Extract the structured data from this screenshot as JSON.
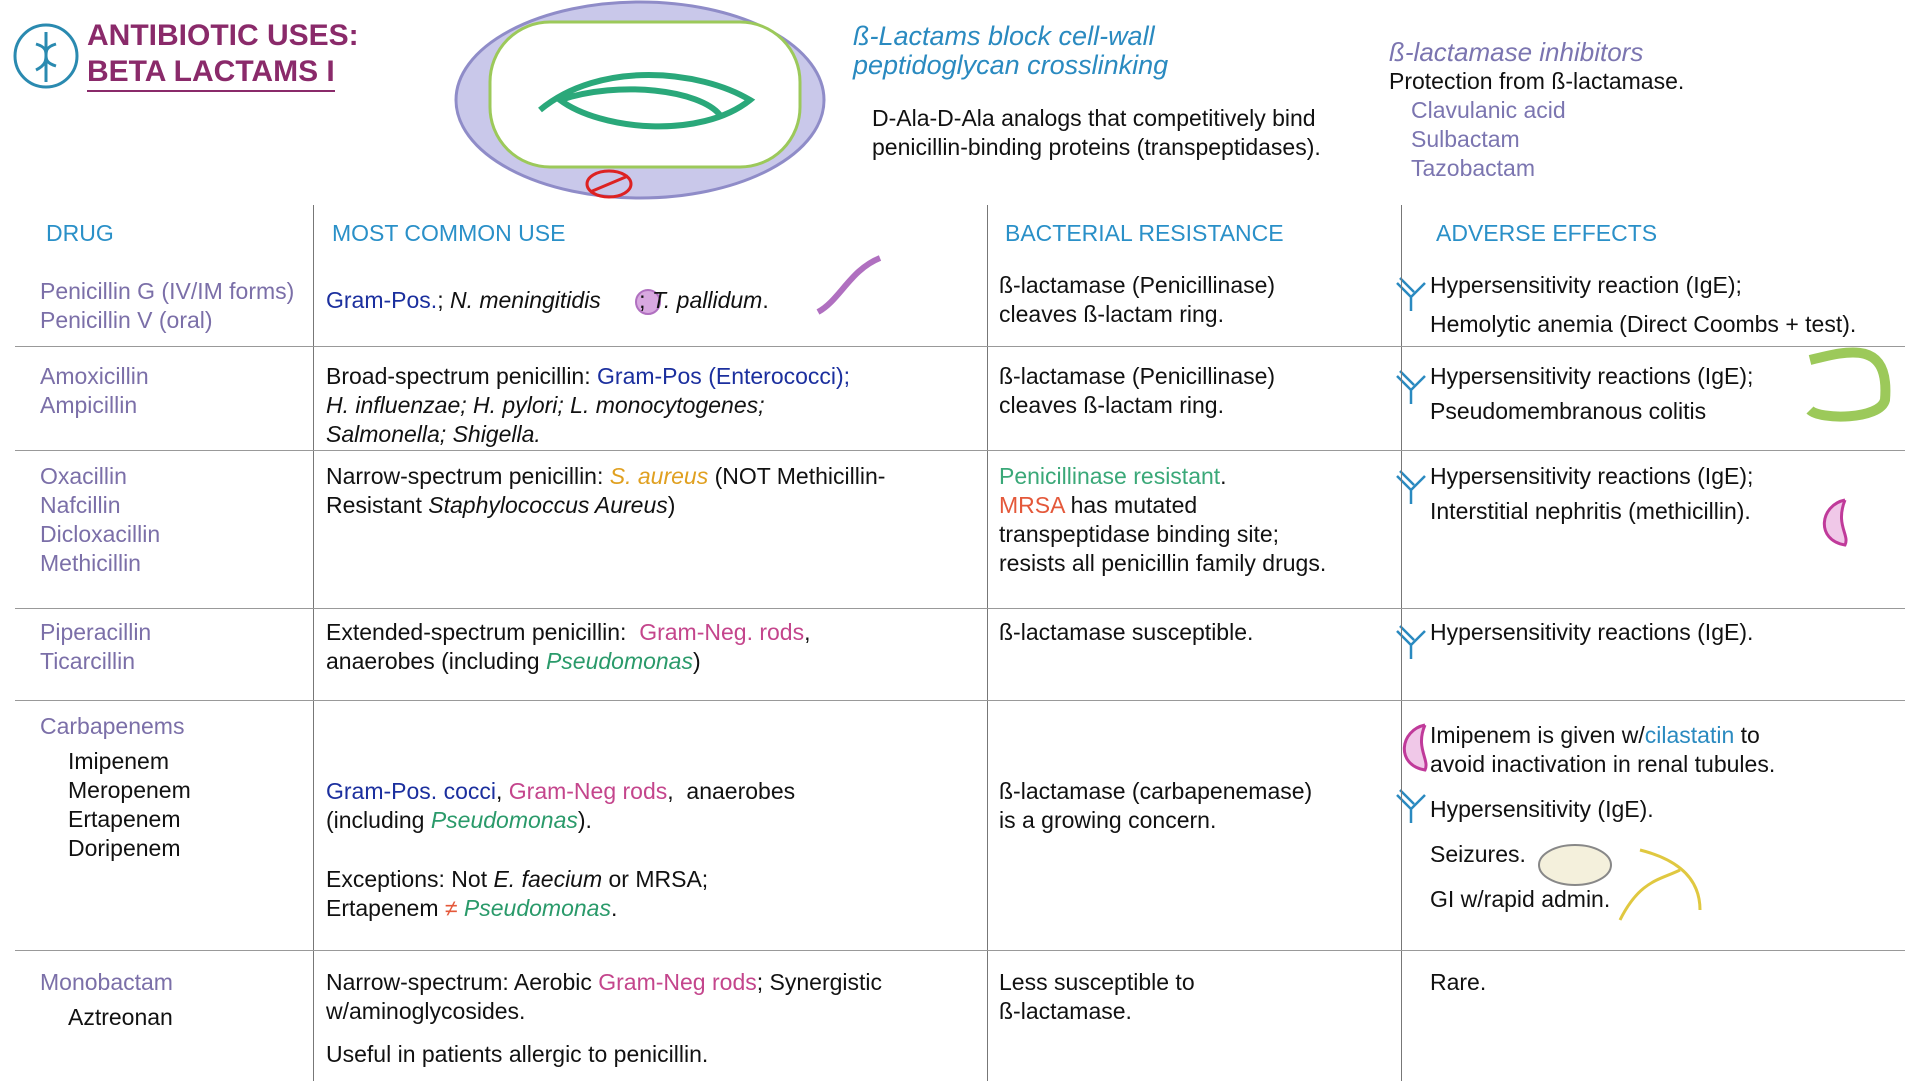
{
  "header": {
    "title": [
      "ANTIBIOTIC USES:",
      "BETA LACTAMS I"
    ]
  },
  "mechanism": {
    "title": [
      "ß-Lactams block cell-wall",
      "peptidoglycan  crosslinking"
    ],
    "text": [
      "D-Ala-D-Ala analogs that competitively bind",
      "penicillin-binding proteins (transpeptidases)."
    ]
  },
  "inhibitors": {
    "title": "ß-lactamase inhibitors",
    "subtitle": "Protection from ß-lactamase.",
    "drugs": [
      "Clavulanic acid",
      "Sulbactam",
      "Tazobactam"
    ]
  },
  "table": {
    "headers": [
      "DRUG",
      "MOST COMMON USE",
      "BACTERIAL RESISTANCE",
      "ADVERSE EFFECTS"
    ],
    "rows": [
      {
        "drugs": [
          "Penicillin G (IV/IM forms)",
          "Penicillin V (oral)"
        ],
        "use": [
          [
            [
              {
                "text": "Gram-Pos.",
                "color": "#1b2f9e"
              },
              "; ",
              {
                "text": "N. meningitidis",
                "italic": true
              },
              "      ; ",
              {
                "text": "T. pallidum",
                "italic": true
              },
              "."
            ]
          ]
        ],
        "resistance": [
          [
            [
              "ß-lactamase (Penicillinase)"
            ],
            [
              "cleaves ß-lactam ring."
            ]
          ]
        ],
        "adverse": [
          [
            [
              "Hypersensitivity reaction (IgE);"
            ]
          ],
          [
            [
              "Hemolytic anemia (Direct Coombs + test)."
            ]
          ]
        ]
      },
      {
        "drugs": [
          "Amoxicillin",
          "Ampicillin"
        ],
        "use": [
          [
            [
              "Broad-spectrum penicillin: ",
              {
                "text": "Gram-Pos (Enterococci);",
                "color": "#1b2f9e"
              }
            ],
            [
              {
                "text": "H. influenzae; H. pylori; L. monocytogenes;",
                "italic": true
              }
            ],
            [
              {
                "text": "Salmonella; Shigella.",
                "italic": true
              }
            ]
          ]
        ],
        "resistance": [
          [
            [
              "ß-lactamase (Penicillinase)"
            ],
            [
              "cleaves ß-lactam ring."
            ]
          ]
        ],
        "adverse": [
          [
            [
              "Hypersensitivity reactions (IgE);"
            ]
          ],
          [
            [
              "Pseudomembranous colitis"
            ]
          ]
        ]
      },
      {
        "drugs": [
          "Oxacillin",
          "Nafcillin",
          "Dicloxacillin",
          "Methicillin"
        ],
        "use": [
          [
            [
              "Narrow-spectrum penicillin: ",
              {
                "text": "S. aureus",
                "color": "#e0a020",
                "italic": true
              },
              " (NOT Methicillin-"
            ],
            [
              "Resistant ",
              {
                "text": "Staphylococcus Aureus",
                "italic": true
              },
              ")"
            ]
          ]
        ],
        "resistance": [
          [
            [
              {
                "text": "Penicillinase resistant",
                "color": "#3aa878"
              },
              "."
            ],
            [
              {
                "text": "MRSA",
                "color": "#e4583a"
              },
              " has mutated"
            ],
            [
              "transpeptidase binding site;"
            ],
            [
              "resists all penicillin family drugs."
            ]
          ]
        ],
        "adverse": [
          [
            [
              "Hypersensitivity reactions (IgE);"
            ]
          ],
          [
            [
              "Interstitial nephritis (methicillin)."
            ]
          ]
        ]
      },
      {
        "drugs": [
          "Piperacillin",
          "Ticarcillin"
        ],
        "use": [
          [
            [
              "Extended-spectrum penicillin:  ",
              {
                "text": "Gram-Neg. rods",
                "color": "#c4458c"
              },
              ","
            ],
            [
              "anaerobes (including ",
              {
                "text": "Pseudomonas",
                "color": "#2a9a6a",
                "italic": true
              },
              ")"
            ]
          ]
        ],
        "resistance": [
          [
            [
              "ß-lactamase susceptible."
            ]
          ]
        ],
        "adverse": [
          [
            [
              "Hypersensitivity reactions (IgE)."
            ]
          ]
        ]
      },
      {
        "drugs": [
          "Carbapenems"
        ],
        "members": [
          "Imipenem",
          "Meropenem",
          "Ertapenem",
          "Doripenem"
        ],
        "use": [
          [
            [
              {
                "text": "Gram-Pos. cocci",
                "color": "#1b2f9e"
              },
              ", ",
              {
                "text": "Gram-Neg rods",
                "color": "#c4458c"
              },
              ",  anaerobes"
            ],
            [
              "(including ",
              {
                "text": "Pseudomonas",
                "color": "#2a9a6a",
                "italic": true
              },
              ")."
            ]
          ],
          [
            [
              "Exceptions: Not ",
              {
                "text": "E. faecium",
                "italic": true
              },
              " or MRSA;"
            ],
            [
              "Ertapenem ",
              {
                "text": "≠",
                "color": "#e4583a"
              },
              " ",
              {
                "text": "Pseudomonas",
                "color": "#2a9a6a",
                "italic": true
              },
              "."
            ]
          ]
        ],
        "resistance": [
          [
            [
              "ß-lactamase (carbapenemase)"
            ],
            [
              "is a growing concern."
            ]
          ]
        ],
        "adverse": [
          [
            [
              "Imipenem is given w/",
              {
                "text": "cilastatin",
                "color": "#2a8ac0"
              },
              " to"
            ],
            [
              "avoid inactivation in renal tubules."
            ]
          ],
          [
            [
              "Hypersensitivity (IgE)."
            ]
          ],
          [
            [
              "Seizures."
            ]
          ],
          [
            [
              "GI w/rapid admin."
            ]
          ]
        ]
      },
      {
        "drugs": [
          "Monobactam"
        ],
        "members": [
          "Aztreonan"
        ],
        "use": [
          [
            [
              "Narrow-spectrum: Aerobic ",
              {
                "text": "Gram-Neg rods",
                "color": "#c4458c"
              },
              "; Synergistic"
            ],
            [
              "w/aminoglycosides."
            ]
          ],
          [
            [
              "Useful in patients allergic to penicillin."
            ]
          ]
        ],
        "resistance": [
          [
            [
              "Less susceptible to"
            ],
            [
              "ß-lactamase."
            ]
          ]
        ],
        "adverse": [
          [
            [
              "Rare."
            ]
          ]
        ]
      }
    ]
  }
}
